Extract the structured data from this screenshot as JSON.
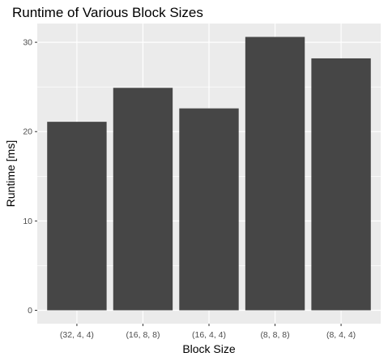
{
  "chart_data": {
    "type": "bar",
    "title": "Runtime of Various Block Sizes",
    "xlabel": "Block Size",
    "ylabel": "Runtime [ms]",
    "categories": [
      "(32, 4, 4)",
      "(16, 8, 8)",
      "(16, 4, 4)",
      "(8, 8, 8)",
      "(8, 4, 4)"
    ],
    "values": [
      21.1,
      24.9,
      22.6,
      30.6,
      28.2
    ],
    "ylim": [
      -1.5,
      32.1
    ],
    "yticks": [
      0,
      10,
      20,
      30
    ],
    "yticks_minor": [
      5,
      15,
      25
    ],
    "grid": true,
    "legend": "none",
    "colors": {
      "bar": "#464646",
      "panel": "#ebebeb",
      "grid": "#ffffff"
    }
  }
}
